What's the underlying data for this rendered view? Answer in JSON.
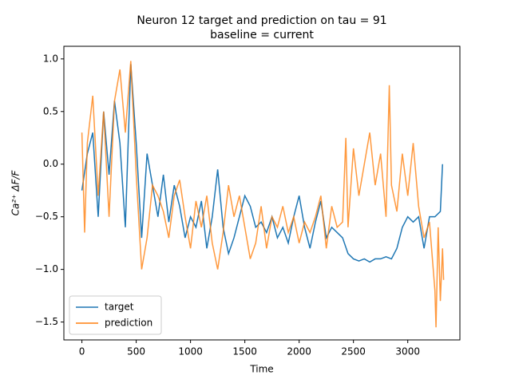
{
  "chart_data": {
    "type": "line",
    "title": "Neuron 12 target and prediction on tau = 91",
    "subtitle": "baseline = current",
    "xlabel": "Time",
    "ylabel": "Ca²⁺ ΔF/F",
    "xlim": [
      -166,
      3480
    ],
    "ylim": [
      -1.67,
      1.12
    ],
    "xticks": [
      0,
      500,
      1000,
      1500,
      2000,
      2500,
      3000
    ],
    "yticks": [
      {
        "value": -1.5,
        "label": "−1.5"
      },
      {
        "value": -1.0,
        "label": "−1.0"
      },
      {
        "value": -0.5,
        "label": "−0.5"
      },
      {
        "value": 0.0,
        "label": "0.0"
      },
      {
        "value": 0.5,
        "label": "0.5"
      },
      {
        "value": 1.0,
        "label": "1.0"
      }
    ],
    "legend": "lower left",
    "series": [
      {
        "name": "target",
        "color": "#1f77b4",
        "x": [
          0,
          50,
          100,
          150,
          200,
          250,
          300,
          350,
          400,
          450,
          500,
          550,
          600,
          650,
          700,
          750,
          800,
          850,
          900,
          950,
          1000,
          1050,
          1100,
          1150,
          1200,
          1250,
          1300,
          1350,
          1400,
          1450,
          1500,
          1550,
          1600,
          1650,
          1700,
          1750,
          1800,
          1850,
          1900,
          1950,
          2000,
          2050,
          2100,
          2150,
          2200,
          2250,
          2300,
          2350,
          2400,
          2450,
          2500,
          2550,
          2600,
          2650,
          2700,
          2750,
          2800,
          2850,
          2900,
          2950,
          3000,
          3050,
          3100,
          3150,
          3200,
          3250,
          3300,
          3320
        ],
        "values": [
          -0.25,
          0.1,
          0.3,
          -0.5,
          0.5,
          -0.1,
          0.6,
          0.2,
          -0.6,
          0.95,
          0.2,
          -0.7,
          0.1,
          -0.2,
          -0.5,
          -0.1,
          -0.55,
          -0.2,
          -0.4,
          -0.7,
          -0.5,
          -0.6,
          -0.35,
          -0.8,
          -0.5,
          -0.05,
          -0.6,
          -0.85,
          -0.7,
          -0.5,
          -0.3,
          -0.4,
          -0.6,
          -0.55,
          -0.65,
          -0.5,
          -0.7,
          -0.6,
          -0.75,
          -0.5,
          -0.3,
          -0.6,
          -0.8,
          -0.55,
          -0.35,
          -0.7,
          -0.6,
          -0.65,
          -0.7,
          -0.85,
          -0.9,
          -0.92,
          -0.9,
          -0.93,
          -0.9,
          -0.9,
          -0.88,
          -0.9,
          -0.8,
          -0.6,
          -0.5,
          -0.55,
          -0.5,
          -0.8,
          -0.5,
          -0.5,
          -0.45,
          0.0
        ]
      },
      {
        "name": "prediction",
        "color": "#ff7f0e",
        "x": [
          0,
          25,
          50,
          100,
          150,
          200,
          250,
          300,
          350,
          400,
          450,
          500,
          550,
          600,
          650,
          700,
          750,
          800,
          850,
          900,
          950,
          1000,
          1050,
          1100,
          1150,
          1200,
          1250,
          1300,
          1350,
          1400,
          1450,
          1500,
          1550,
          1600,
          1650,
          1700,
          1750,
          1800,
          1850,
          1900,
          1950,
          2000,
          2050,
          2100,
          2150,
          2200,
          2250,
          2300,
          2350,
          2400,
          2430,
          2450,
          2500,
          2550,
          2600,
          2650,
          2700,
          2750,
          2800,
          2830,
          2850,
          2900,
          2950,
          3000,
          3050,
          3100,
          3150,
          3200,
          3250,
          3260,
          3280,
          3300,
          3320,
          3330
        ],
        "values": [
          0.3,
          -0.65,
          0.2,
          0.65,
          -0.3,
          0.5,
          -0.5,
          0.6,
          0.9,
          0.3,
          0.98,
          -0.1,
          -1.0,
          -0.7,
          -0.2,
          -0.3,
          -0.45,
          -0.7,
          -0.3,
          -0.15,
          -0.5,
          -0.8,
          -0.35,
          -0.6,
          -0.3,
          -0.75,
          -1.0,
          -0.65,
          -0.2,
          -0.5,
          -0.3,
          -0.6,
          -0.9,
          -0.75,
          -0.4,
          -0.8,
          -0.5,
          -0.6,
          -0.4,
          -0.65,
          -0.5,
          -0.75,
          -0.55,
          -0.65,
          -0.5,
          -0.3,
          -0.8,
          -0.4,
          -0.6,
          -0.55,
          0.25,
          -0.6,
          0.15,
          -0.3,
          0.0,
          0.3,
          -0.2,
          0.1,
          -0.5,
          0.75,
          -0.2,
          -0.45,
          0.1,
          -0.3,
          0.2,
          -0.4,
          -0.7,
          -0.55,
          -1.2,
          -1.55,
          -0.6,
          -1.3,
          -0.8,
          -1.1
        ]
      }
    ]
  }
}
